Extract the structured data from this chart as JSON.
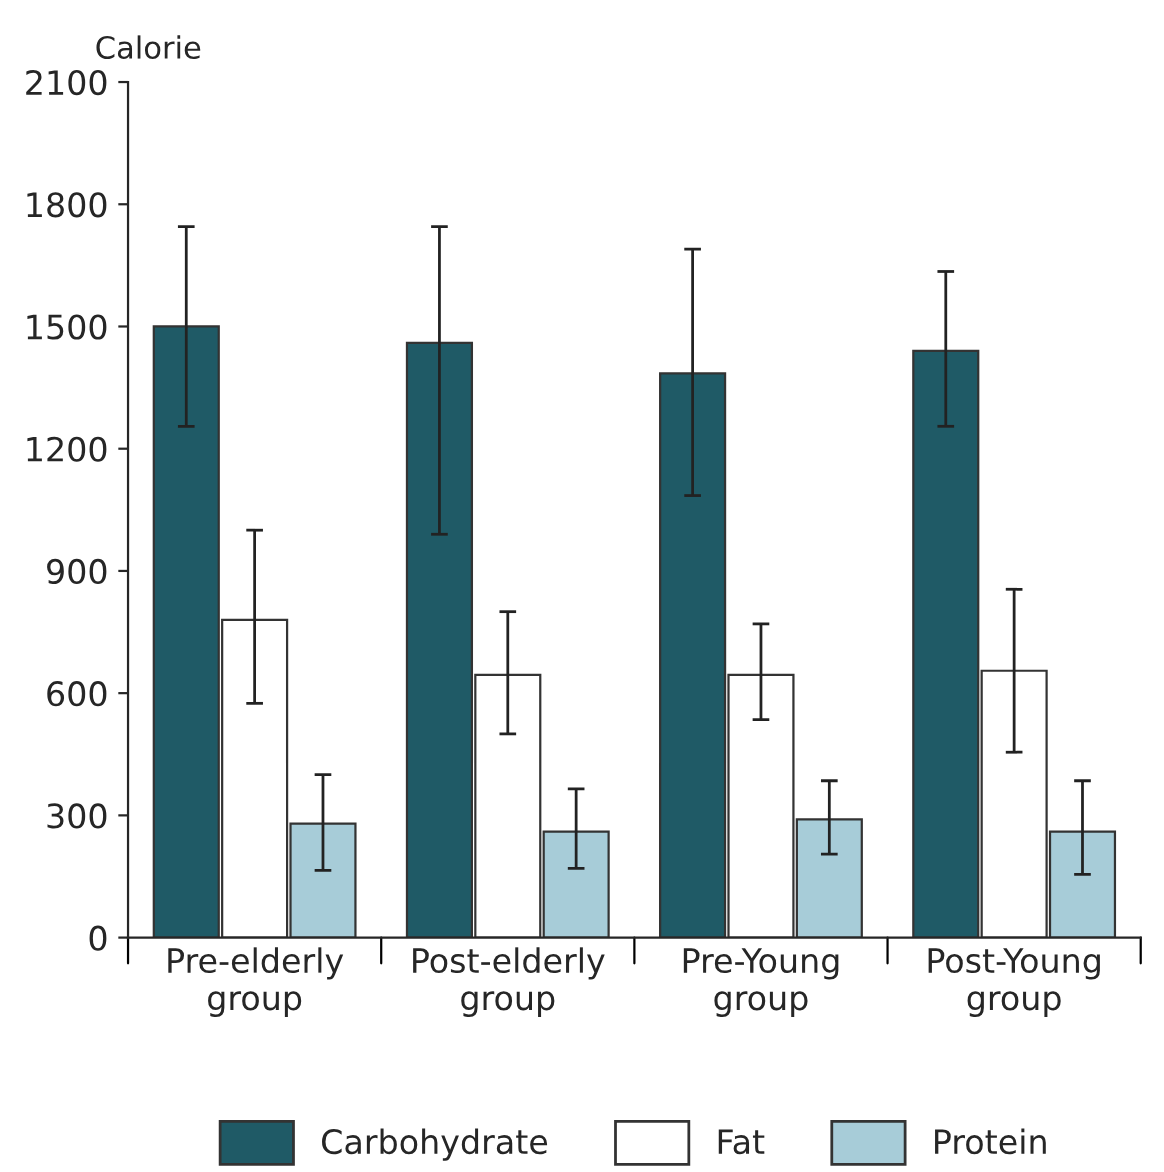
{
  "chart_data": {
    "type": "bar",
    "ylabel": "Calorie",
    "categories": [
      "Pre-elderly\ngroup",
      "Post-elderly\ngroup",
      "Pre-Young\ngroup",
      "Post-Young\ngroup"
    ],
    "series": [
      {
        "name": "Carbohydrate",
        "color": "#1f5a66",
        "values": [
          1500,
          1460,
          1385,
          1440
        ],
        "errors": [
          [
            1255,
            1745
          ],
          [
            990,
            1745
          ],
          [
            1085,
            1690
          ],
          [
            1255,
            1635
          ]
        ]
      },
      {
        "name": "Fat",
        "color": "#ffffff",
        "values": [
          780,
          645,
          645,
          655
        ],
        "errors": [
          [
            575,
            1000
          ],
          [
            500,
            800
          ],
          [
            535,
            770
          ],
          [
            455,
            855
          ]
        ]
      },
      {
        "name": "Protein",
        "color": "#a7ccd8",
        "values": [
          280,
          260,
          290,
          260
        ],
        "errors": [
          [
            165,
            400
          ],
          [
            170,
            365
          ],
          [
            205,
            385
          ],
          [
            155,
            385
          ]
        ]
      }
    ],
    "ylim": [
      0,
      2100
    ],
    "yticks": [
      0,
      300,
      600,
      900,
      1200,
      1500,
      1800,
      2100
    ],
    "grid": false,
    "legend": "bottom"
  }
}
